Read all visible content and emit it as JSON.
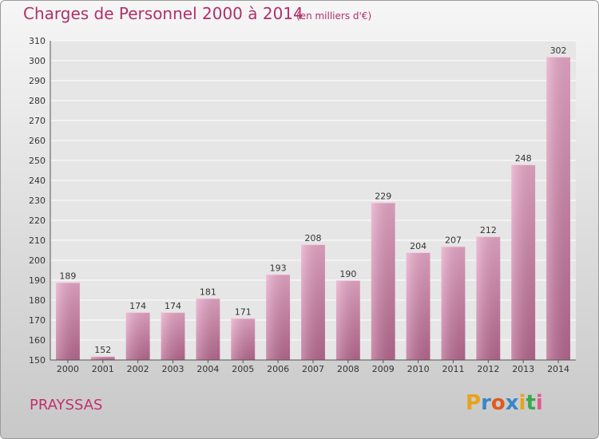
{
  "header": {
    "title": "Charges de Personnel 2000 à 2014",
    "subtitle": "(en milliers d'€)"
  },
  "footer": {
    "commune": "PRAYSSAS",
    "logo_letters": [
      "P",
      "r",
      "o",
      "x",
      "i",
      "t",
      "i"
    ],
    "logo_colors": [
      "#e8a21c",
      "#3a86c8",
      "#e05a1c",
      "#3a86c8",
      "#e8a21c",
      "#3aa84a",
      "#e05a8c"
    ]
  },
  "chart_data": {
    "type": "bar",
    "title": "Charges de Personnel 2000 à 2014",
    "subtitle": "(en milliers d'€)",
    "categories": [
      "2000",
      "2001",
      "2002",
      "2003",
      "2004",
      "2005",
      "2006",
      "2007",
      "2008",
      "2009",
      "2010",
      "2011",
      "2012",
      "2013",
      "2014"
    ],
    "values": [
      189,
      152,
      174,
      174,
      181,
      171,
      193,
      208,
      190,
      229,
      204,
      207,
      212,
      248,
      302
    ],
    "ylim": [
      150,
      310
    ],
    "yticks": [
      150,
      160,
      170,
      180,
      190,
      200,
      210,
      220,
      230,
      240,
      250,
      260,
      270,
      280,
      290,
      300,
      310
    ],
    "grid": true,
    "bar_color": "#d080a8"
  }
}
